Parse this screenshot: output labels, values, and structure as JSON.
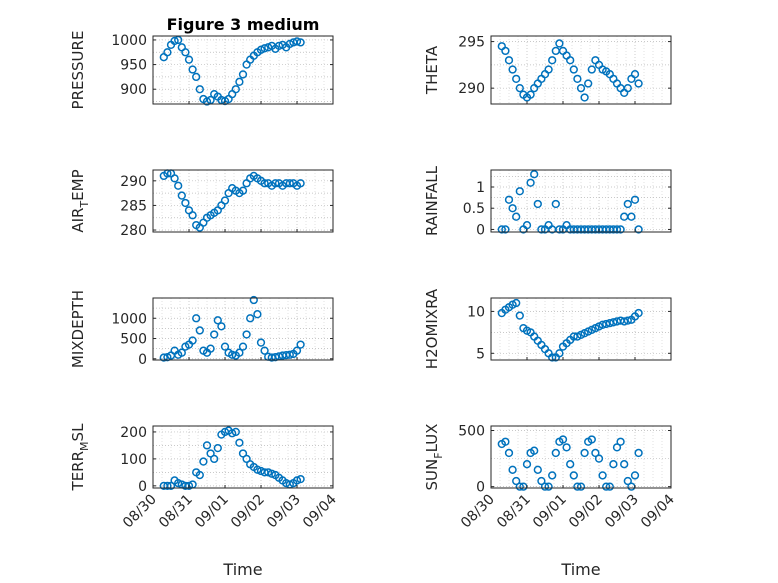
{
  "figure": {
    "title": "Figure 3 medium",
    "xlabel": "Time",
    "x_ticks": [
      "08/30",
      "08/31",
      "09/01",
      "09/02",
      "09/03",
      "09/04"
    ]
  },
  "colors": {
    "marker": "#0072BD",
    "axes": "#262626",
    "grid": "#b7b7b7"
  },
  "chart_data": [
    {
      "type": "scatter",
      "ylabel": "PRESSURE",
      "y_ticks": [
        "900",
        "950",
        "1000"
      ],
      "ylim": [
        870,
        1008
      ],
      "grid": true,
      "x_range": [
        "08/30",
        "09/04"
      ],
      "series": [
        {
          "x": [
            0.3,
            0.4,
            0.5,
            0.6,
            0.7,
            0.8,
            0.9,
            1.0,
            1.1,
            1.2,
            1.3,
            1.4,
            1.5,
            1.6,
            1.7,
            1.8,
            1.9,
            2.0,
            2.1,
            2.2,
            2.3,
            2.4,
            2.5,
            2.6,
            2.7,
            2.8,
            2.9,
            3.0,
            3.1,
            3.2,
            3.3,
            3.4,
            3.5,
            3.6,
            3.7,
            3.8,
            3.9,
            4.0,
            4.1
          ],
          "y": [
            965,
            975,
            990,
            998,
            1000,
            985,
            975,
            960,
            940,
            925,
            900,
            880,
            875,
            878,
            890,
            885,
            878,
            876,
            880,
            890,
            900,
            915,
            930,
            950,
            960,
            968,
            975,
            980,
            983,
            985,
            988,
            982,
            988,
            990,
            985,
            992,
            995,
            997,
            995
          ]
        }
      ]
    },
    {
      "type": "scatter",
      "ylabel": "THETA",
      "y_ticks": [
        "290",
        "295"
      ],
      "ylim": [
        288.3,
        295.6
      ],
      "grid": true,
      "x_range": [
        "08/30",
        "09/04"
      ],
      "series": [
        {
          "x": [
            0.3,
            0.4,
            0.5,
            0.6,
            0.7,
            0.8,
            0.9,
            1.0,
            1.1,
            1.2,
            1.3,
            1.4,
            1.5,
            1.6,
            1.7,
            1.8,
            1.9,
            2.0,
            2.1,
            2.2,
            2.3,
            2.4,
            2.5,
            2.6,
            2.7,
            2.8,
            2.9,
            3.0,
            3.1,
            3.2,
            3.3,
            3.4,
            3.5,
            3.6,
            3.7,
            3.8,
            3.9,
            4.0,
            4.1
          ],
          "y": [
            294.5,
            294.0,
            293.0,
            292.0,
            291.0,
            290.0,
            289.3,
            289.0,
            289.3,
            290.0,
            290.5,
            291.0,
            291.5,
            292.0,
            293.0,
            294.0,
            294.8,
            294.0,
            293.5,
            293.0,
            292.0,
            291.0,
            290.0,
            289.0,
            290.5,
            292.0,
            293.0,
            292.5,
            292.0,
            291.8,
            291.5,
            291.0,
            290.5,
            290.0,
            289.5,
            290.0,
            291.0,
            291.5,
            290.5
          ]
        }
      ]
    },
    {
      "type": "scatter",
      "ylabel": "AIR_TEMP",
      "y_ticks": [
        "280",
        "285",
        "290"
      ],
      "ylim": [
        279.6,
        292.2
      ],
      "grid": true,
      "x_range": [
        "08/30",
        "09/04"
      ],
      "series": [
        {
          "x": [
            0.3,
            0.4,
            0.5,
            0.6,
            0.7,
            0.8,
            0.9,
            1.0,
            1.1,
            1.2,
            1.3,
            1.4,
            1.5,
            1.6,
            1.7,
            1.8,
            1.9,
            2.0,
            2.1,
            2.2,
            2.3,
            2.4,
            2.5,
            2.6,
            2.7,
            2.8,
            2.9,
            3.0,
            3.1,
            3.2,
            3.3,
            3.4,
            3.5,
            3.6,
            3.7,
            3.8,
            3.9,
            4.0,
            4.1
          ],
          "y": [
            291.0,
            291.5,
            291.5,
            290.5,
            289.0,
            287.0,
            285.5,
            284.0,
            283.0,
            281.0,
            280.5,
            281.5,
            282.5,
            283.0,
            283.5,
            284.0,
            285.0,
            286.0,
            287.5,
            288.5,
            288.0,
            287.5,
            288.0,
            289.5,
            290.5,
            291.0,
            290.5,
            290.0,
            289.5,
            289.5,
            289.0,
            289.5,
            289.5,
            289.0,
            289.5,
            289.5,
            289.5,
            289.0,
            289.5
          ]
        }
      ]
    },
    {
      "type": "scatter",
      "ylabel": "RAINFALL",
      "y_ticks": [
        "0",
        "0.5",
        "1"
      ],
      "ylim": [
        -0.06,
        1.4
      ],
      "grid": true,
      "x_range": [
        "08/30",
        "09/04"
      ],
      "series": [
        {
          "x": [
            0.3,
            0.4,
            0.5,
            0.6,
            0.7,
            0.8,
            0.9,
            1.0,
            1.1,
            1.2,
            1.3,
            1.4,
            1.5,
            1.6,
            1.7,
            1.8,
            1.9,
            2.0,
            2.1,
            2.2,
            2.3,
            2.4,
            2.5,
            2.6,
            2.7,
            2.8,
            2.9,
            3.0,
            3.1,
            3.2,
            3.3,
            3.4,
            3.5,
            3.6,
            3.7,
            3.8,
            3.9,
            4.0,
            4.1
          ],
          "y": [
            0,
            0,
            0.7,
            0.5,
            0.3,
            0.9,
            0,
            0.1,
            1.1,
            1.3,
            0.6,
            0,
            0,
            0.1,
            0,
            0.6,
            0,
            0,
            0.1,
            0,
            0,
            0,
            0,
            0,
            0,
            0,
            0,
            0,
            0,
            0,
            0,
            0,
            0,
            0,
            0.3,
            0.6,
            0.3,
            0.7,
            0
          ]
        }
      ]
    },
    {
      "type": "scatter",
      "ylabel": "MIXDEPTH",
      "y_ticks": [
        "0",
        "500",
        "1000"
      ],
      "ylim": [
        -30,
        1500
      ],
      "grid": true,
      "x_range": [
        "08/30",
        "09/04"
      ],
      "series": [
        {
          "x": [
            0.3,
            0.4,
            0.5,
            0.6,
            0.7,
            0.8,
            0.9,
            1.0,
            1.1,
            1.2,
            1.3,
            1.4,
            1.5,
            1.6,
            1.7,
            1.8,
            1.9,
            2.0,
            2.1,
            2.2,
            2.3,
            2.4,
            2.5,
            2.6,
            2.7,
            2.8,
            2.9,
            3.0,
            3.1,
            3.2,
            3.3,
            3.4,
            3.5,
            3.6,
            3.7,
            3.8,
            3.9,
            4.0,
            4.1
          ],
          "y": [
            30,
            40,
            80,
            200,
            100,
            150,
            300,
            350,
            450,
            1000,
            700,
            200,
            150,
            250,
            600,
            950,
            800,
            300,
            150,
            100,
            80,
            150,
            300,
            600,
            1000,
            1450,
            1100,
            400,
            200,
            50,
            30,
            40,
            60,
            80,
            90,
            100,
            120,
            200,
            350
          ]
        }
      ]
    },
    {
      "type": "scatter",
      "ylabel": "H2OMIXRA",
      "y_ticks": [
        "5",
        "10"
      ],
      "ylim": [
        4.2,
        11.6
      ],
      "grid": true,
      "x_range": [
        "08/30",
        "09/04"
      ],
      "series": [
        {
          "x": [
            0.3,
            0.4,
            0.5,
            0.6,
            0.7,
            0.8,
            0.9,
            1.0,
            1.1,
            1.2,
            1.3,
            1.4,
            1.5,
            1.6,
            1.7,
            1.8,
            1.9,
            2.0,
            2.1,
            2.2,
            2.3,
            2.4,
            2.5,
            2.6,
            2.7,
            2.8,
            2.9,
            3.0,
            3.1,
            3.2,
            3.3,
            3.4,
            3.5,
            3.6,
            3.7,
            3.8,
            3.9,
            4.0,
            4.1
          ],
          "y": [
            9.8,
            10.2,
            10.5,
            10.8,
            11.0,
            9.5,
            8.0,
            7.7,
            7.5,
            7.0,
            6.5,
            6.0,
            5.5,
            5.0,
            4.5,
            4.5,
            5.0,
            5.8,
            6.2,
            6.6,
            7.0,
            7.0,
            7.2,
            7.4,
            7.6,
            7.8,
            8.0,
            8.2,
            8.4,
            8.5,
            8.6,
            8.7,
            8.8,
            8.9,
            8.8,
            8.9,
            9.0,
            9.4,
            9.8
          ]
        }
      ]
    },
    {
      "type": "scatter",
      "ylabel": "TERR_MSL",
      "y_ticks": [
        "0",
        "100",
        "200"
      ],
      "ylim": [
        -8,
        222
      ],
      "grid": true,
      "x_range": [
        "08/30",
        "09/04"
      ],
      "series": [
        {
          "x": [
            0.3,
            0.4,
            0.5,
            0.6,
            0.7,
            0.8,
            0.9,
            1.0,
            1.1,
            1.2,
            1.3,
            1.4,
            1.5,
            1.6,
            1.7,
            1.8,
            1.9,
            2.0,
            2.1,
            2.2,
            2.3,
            2.4,
            2.5,
            2.6,
            2.7,
            2.8,
            2.9,
            3.0,
            3.1,
            3.2,
            3.3,
            3.4,
            3.5,
            3.6,
            3.7,
            3.8,
            3.9,
            4.0,
            4.1
          ],
          "y": [
            0,
            0,
            0,
            20,
            10,
            5,
            0,
            0,
            5,
            50,
            40,
            90,
            150,
            120,
            100,
            140,
            190,
            200,
            205,
            195,
            200,
            160,
            120,
            100,
            80,
            70,
            60,
            55,
            50,
            50,
            45,
            40,
            30,
            20,
            10,
            5,
            10,
            20,
            25
          ]
        }
      ]
    },
    {
      "type": "scatter",
      "ylabel": "SUN_FLUX",
      "y_ticks": [
        "0",
        "500"
      ],
      "ylim": [
        -12,
        540
      ],
      "grid": true,
      "x_range": [
        "08/30",
        "09/04"
      ],
      "series": [
        {
          "x": [
            0.3,
            0.4,
            0.5,
            0.6,
            0.7,
            0.8,
            0.9,
            1.0,
            1.1,
            1.2,
            1.3,
            1.4,
            1.5,
            1.6,
            1.7,
            1.8,
            1.9,
            2.0,
            2.1,
            2.2,
            2.3,
            2.4,
            2.5,
            2.6,
            2.7,
            2.8,
            2.9,
            3.0,
            3.1,
            3.2,
            3.3,
            3.4,
            3.5,
            3.6,
            3.7,
            3.8,
            3.9,
            4.0,
            4.1
          ],
          "y": [
            380,
            400,
            300,
            150,
            50,
            0,
            0,
            200,
            300,
            320,
            150,
            50,
            0,
            0,
            100,
            300,
            400,
            420,
            350,
            200,
            100,
            0,
            0,
            300,
            400,
            420,
            300,
            250,
            100,
            0,
            0,
            200,
            350,
            400,
            200,
            50,
            0,
            100,
            300
          ]
        }
      ]
    }
  ]
}
